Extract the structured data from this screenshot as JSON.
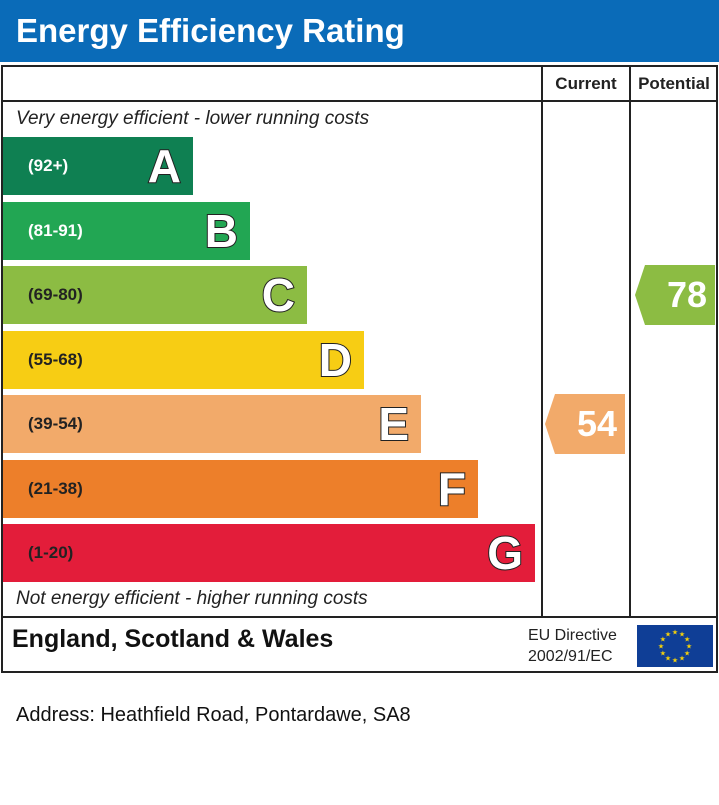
{
  "chart_data": {
    "type": "bar",
    "title": "Energy Efficiency Rating",
    "column_headers": [
      "Current",
      "Potential"
    ],
    "top_note": "Very energy efficient - lower running costs",
    "bottom_note": "Not energy efficient - higher running costs",
    "bands": [
      {
        "letter": "A",
        "range": "(92+)",
        "color": "#0f8052",
        "text_color": "#ffffff"
      },
      {
        "letter": "B",
        "range": "(81-91)",
        "color": "#22a653",
        "text_color": "#ffffff"
      },
      {
        "letter": "C",
        "range": "(69-80)",
        "color": "#8cbc43",
        "text_color": "#222222"
      },
      {
        "letter": "D",
        "range": "(55-68)",
        "color": "#f7cd14",
        "text_color": "#222222"
      },
      {
        "letter": "E",
        "range": "(39-54)",
        "color": "#f2aa6a",
        "text_color": "#222222"
      },
      {
        "letter": "F",
        "range": "(21-38)",
        "color": "#ed7f2a",
        "text_color": "#222222"
      },
      {
        "letter": "G",
        "range": "(1-20)",
        "color": "#e31d3a",
        "text_color": "#222222"
      }
    ],
    "current": {
      "value": 54,
      "label": "54",
      "band": "E",
      "color": "#f2aa6a"
    },
    "potential": {
      "value": 78,
      "label": "78",
      "band": "C",
      "color": "#8cbc43"
    }
  },
  "footer": {
    "country": "England, Scotland & Wales",
    "directive_line1": "EU Directive",
    "directive_line2": "2002/91/EC",
    "flag_icon": "eu-flag-icon"
  },
  "address": "Address: Heathfield Road, Pontardawe, SA8"
}
